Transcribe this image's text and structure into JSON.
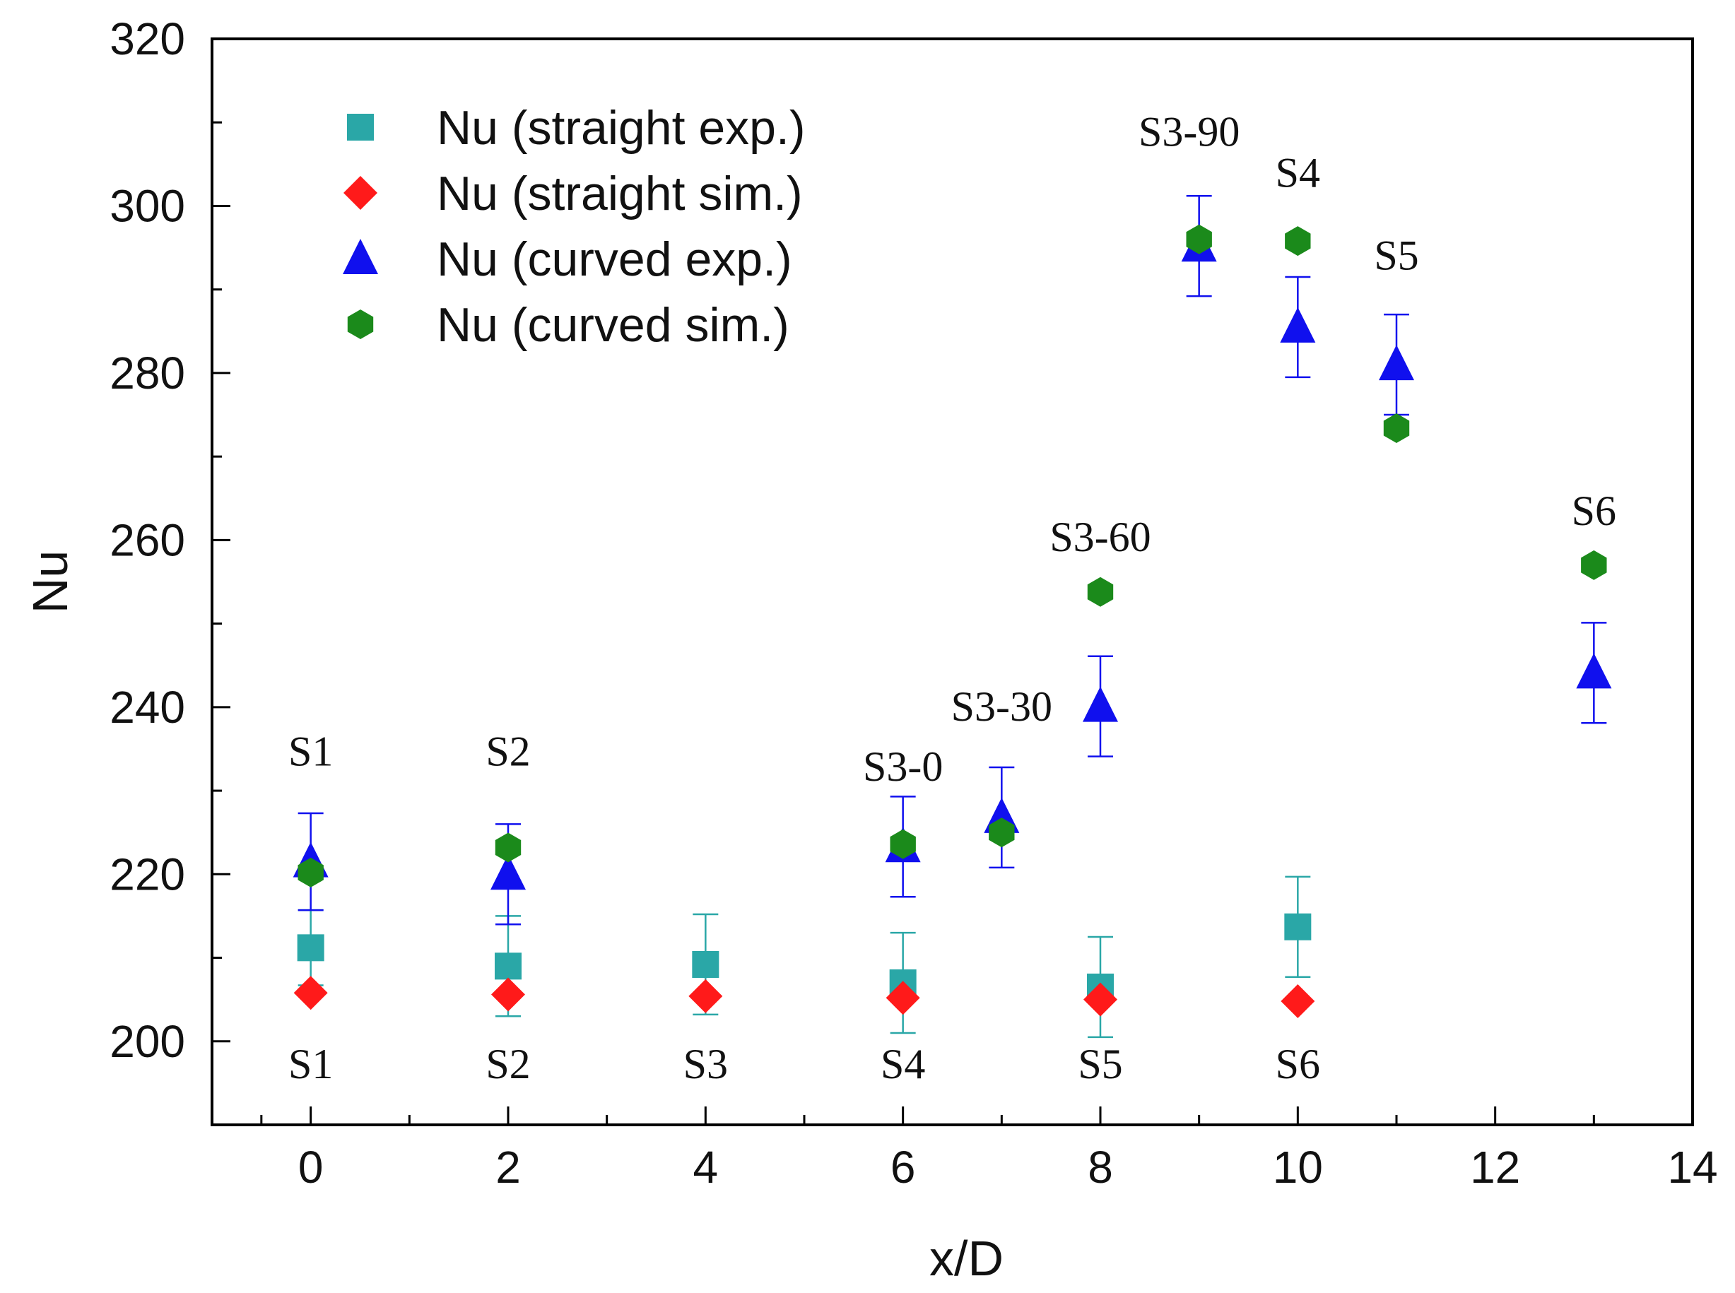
{
  "chart_data": {
    "type": "scatter",
    "title": "",
    "xlabel": "x/D",
    "ylabel": "Nu",
    "xlim": [
      -1,
      14
    ],
    "ylim": [
      190,
      320
    ],
    "xticks": [
      0,
      2,
      4,
      6,
      8,
      10,
      12,
      14
    ],
    "yticks": [
      200,
      220,
      240,
      260,
      280,
      300,
      320
    ],
    "legend_position": "top-left",
    "series": [
      {
        "name": "Nu (straight exp.)",
        "marker": "square",
        "color": "#2aa7a7",
        "points": [
          {
            "x": 0,
            "y": 211.2,
            "err": 4.5
          },
          {
            "x": 2,
            "y": 209.0,
            "err": 6.0
          },
          {
            "x": 4,
            "y": 209.2,
            "err": 6.0
          },
          {
            "x": 6,
            "y": 207.0,
            "err": 6.0
          },
          {
            "x": 8,
            "y": 206.5,
            "err": 6.0
          },
          {
            "x": 10,
            "y": 213.7,
            "err": 6.0
          }
        ]
      },
      {
        "name": "Nu (straight sim.)",
        "marker": "diamond",
        "color": "#ff1a1a",
        "points": [
          {
            "x": 0,
            "y": 205.8
          },
          {
            "x": 2,
            "y": 205.6
          },
          {
            "x": 4,
            "y": 205.4
          },
          {
            "x": 6,
            "y": 205.2
          },
          {
            "x": 8,
            "y": 205.0
          },
          {
            "x": 10,
            "y": 204.8
          }
        ]
      },
      {
        "name": "Nu (curved exp.)",
        "marker": "triangle",
        "color": "#1010ee",
        "points": [
          {
            "x": 0,
            "y": 221.5,
            "err": 5.8
          },
          {
            "x": 2,
            "y": 220.0,
            "err": 6.0
          },
          {
            "x": 6,
            "y": 223.3,
            "err": 6.0
          },
          {
            "x": 7,
            "y": 226.8,
            "err": 6.0
          },
          {
            "x": 8,
            "y": 240.1,
            "err": 6.0
          },
          {
            "x": 9,
            "y": 295.2,
            "err": 6.0
          },
          {
            "x": 10,
            "y": 285.5,
            "err": 6.0
          },
          {
            "x": 11,
            "y": 281.0,
            "err": 6.0
          },
          {
            "x": 13,
            "y": 244.1,
            "err": 6.0
          }
        ]
      },
      {
        "name": "Nu (curved sim.)",
        "marker": "hexagon",
        "color": "#1b8a1b",
        "points": [
          {
            "x": 0,
            "y": 220.2
          },
          {
            "x": 2,
            "y": 223.2
          },
          {
            "x": 6,
            "y": 223.6
          },
          {
            "x": 7,
            "y": 225.0
          },
          {
            "x": 8,
            "y": 253.8
          },
          {
            "x": 9,
            "y": 296.0
          },
          {
            "x": 10,
            "y": 295.8
          },
          {
            "x": 11,
            "y": 273.4
          },
          {
            "x": 13,
            "y": 257.0
          }
        ]
      }
    ],
    "annotations_top": [
      {
        "text": "S1",
        "x": 0,
        "y": 233
      },
      {
        "text": "S2",
        "x": 2,
        "y": 233
      },
      {
        "text": "S3-0",
        "x": 6,
        "y": 231.2
      },
      {
        "text": "S3-30",
        "x": 7,
        "y": 238.4
      },
      {
        "text": "S3-60",
        "x": 8,
        "y": 258.7
      },
      {
        "text": "S3-90",
        "x": 8.9,
        "y": 307.2
      },
      {
        "text": "S4",
        "x": 10,
        "y": 302.3
      },
      {
        "text": "S5",
        "x": 11,
        "y": 292.4
      },
      {
        "text": "S6",
        "x": 13,
        "y": 261.8
      }
    ],
    "annotations_bottom": [
      {
        "text": "S1",
        "x": 0,
        "y": 195.6
      },
      {
        "text": "S2",
        "x": 2,
        "y": 195.6
      },
      {
        "text": "S3",
        "x": 4,
        "y": 195.6
      },
      {
        "text": "S4",
        "x": 6,
        "y": 195.6
      },
      {
        "text": "S5",
        "x": 8,
        "y": 195.6
      },
      {
        "text": "S6",
        "x": 10,
        "y": 195.6
      }
    ]
  }
}
